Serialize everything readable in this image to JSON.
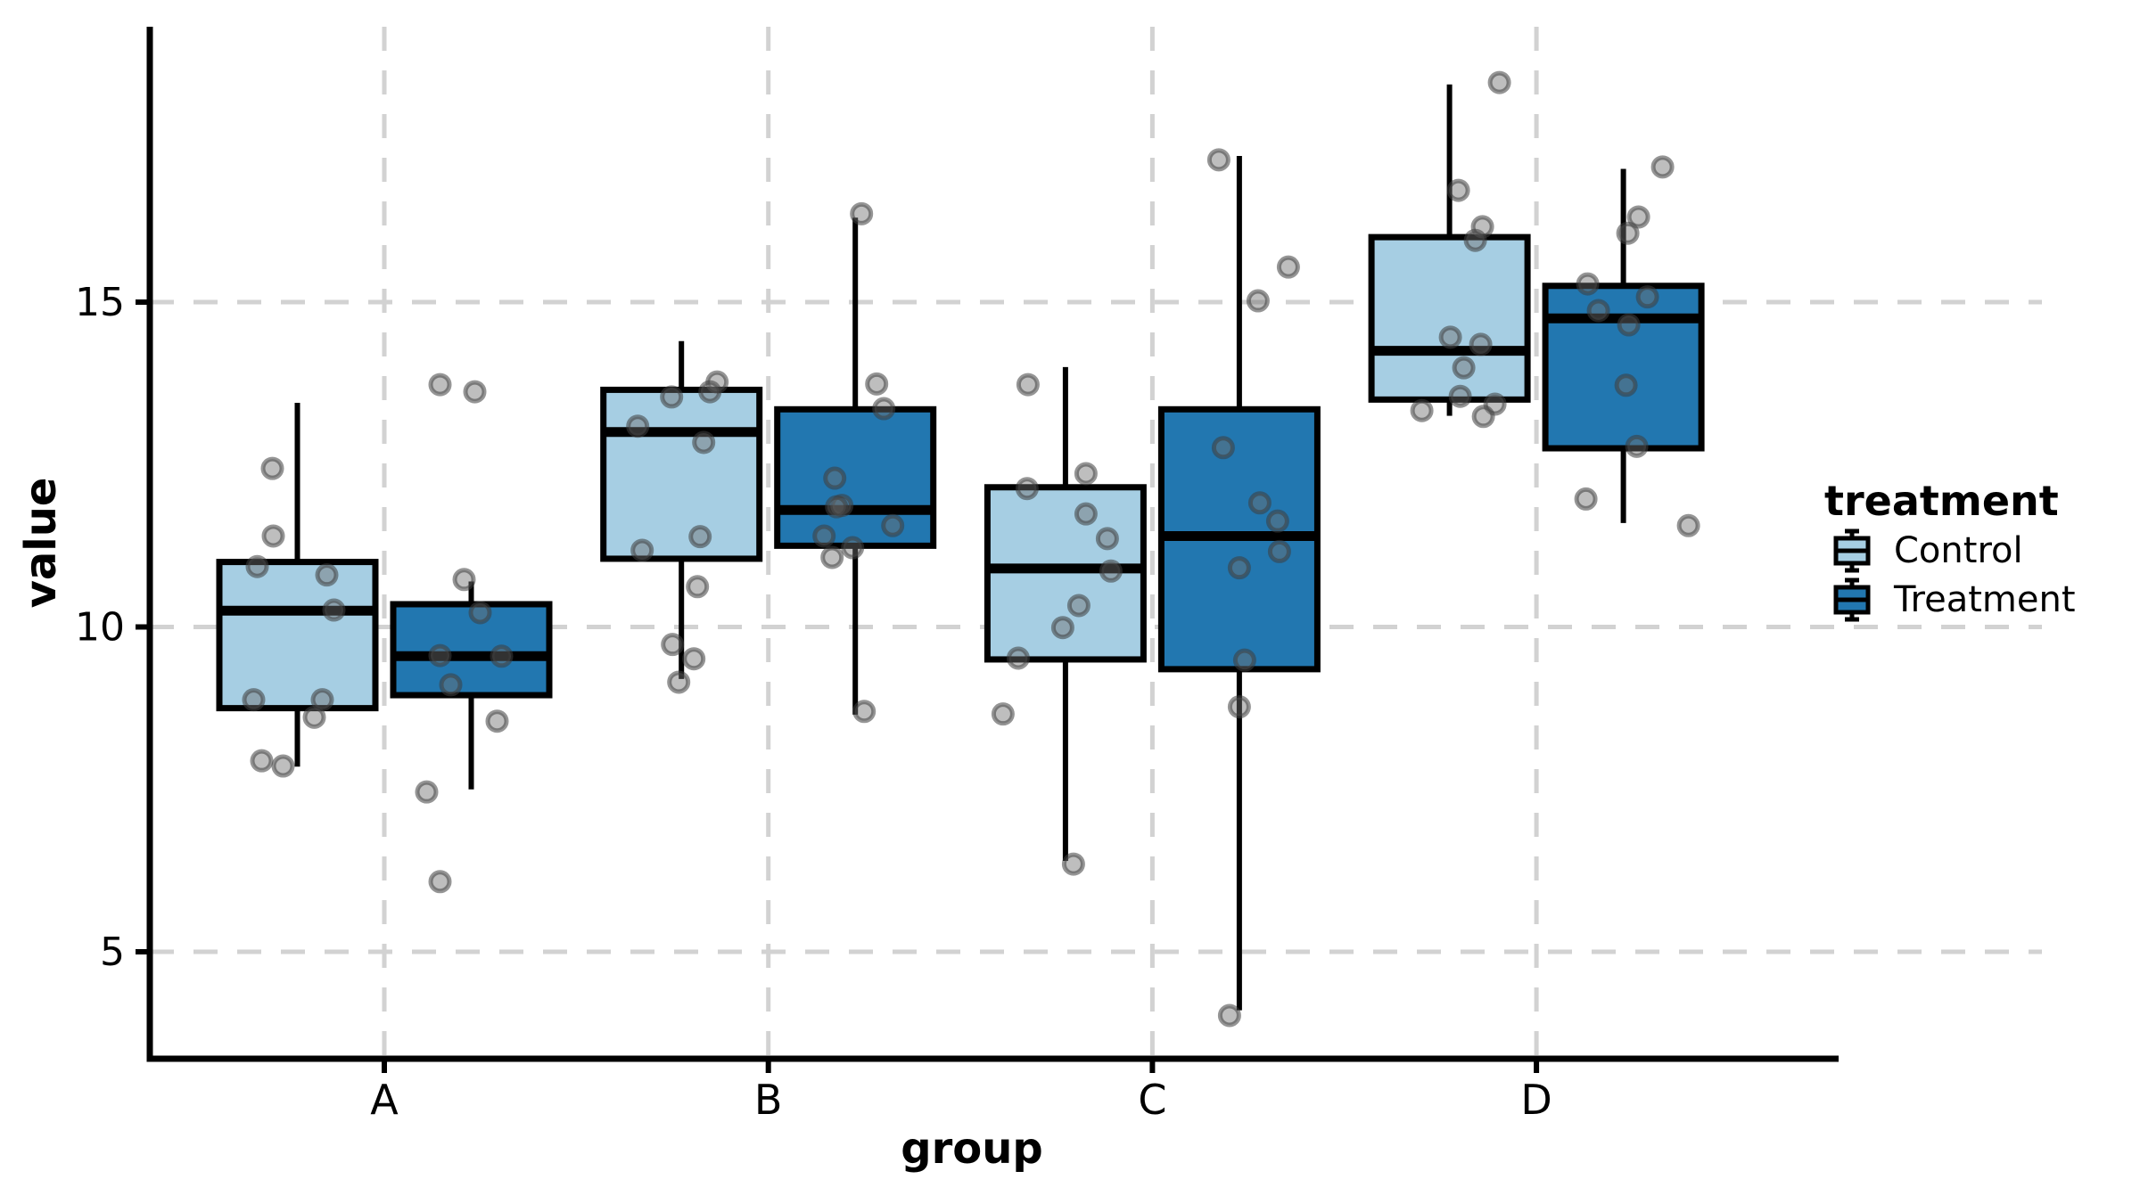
{
  "axes": {
    "x": {
      "label": "group",
      "categories": [
        "A",
        "B",
        "C",
        "D"
      ]
    },
    "y": {
      "label": "value",
      "ticks": [
        5,
        10,
        15
      ]
    }
  },
  "legend": {
    "title": "treatment",
    "entries": [
      {
        "label": "Control",
        "key": "control"
      },
      {
        "label": "Treatment",
        "key": "treatment"
      }
    ]
  },
  "colors": {
    "control_fill": "#A6CEE3",
    "treatment_fill": "#2277B0",
    "ink": "#000000",
    "gridline": "#D2D2D2",
    "point_fill": "#6E6E6E",
    "point_stroke": "#3E3E3E"
  },
  "chart_data": {
    "type": "boxplot",
    "orientation": "vertical",
    "title": "",
    "xlabel": "group",
    "ylabel": "value",
    "x_categories": [
      "A",
      "B",
      "C",
      "D"
    ],
    "y_ticks": [
      5,
      10,
      15
    ],
    "y_domain": [
      3.2,
      19.3
    ],
    "grid": "dashed-major-both",
    "legend_position": "right",
    "jitter_points_shown": true,
    "series": [
      {
        "name": "Control",
        "color": "#A6CEE3",
        "boxes": [
          {
            "group": "A",
            "whisker_low": 7.85,
            "q1": 8.75,
            "median": 10.25,
            "q3": 11.0,
            "whisker_high": 13.45,
            "points": [
              [
                -28,
                12.44
              ],
              [
                -27,
                11.4
              ],
              [
                -45,
                10.93
              ],
              [
                33,
                10.8
              ],
              [
                41,
                10.26
              ],
              [
                -49,
                8.88
              ],
              [
                28,
                8.88
              ],
              [
                19,
                8.61
              ],
              [
                -40,
                7.94
              ],
              [
                -16,
                7.86
              ]
            ]
          },
          {
            "group": "B",
            "whisker_low": 9.2,
            "q1": 11.05,
            "median": 13.0,
            "q3": 13.65,
            "whisker_high": 14.4,
            "points": [
              [
                40,
                13.77
              ],
              [
                32,
                13.62
              ],
              [
                -11,
                13.54
              ],
              [
                -49,
                13.09
              ],
              [
                25,
                12.84
              ],
              [
                21,
                11.39
              ],
              [
                -44,
                11.18
              ],
              [
                18,
                10.62
              ],
              [
                -10,
                9.73
              ],
              [
                14,
                9.51
              ],
              [
                -3,
                9.15
              ]
            ]
          },
          {
            "group": "C",
            "whisker_low": 6.4,
            "q1": 9.5,
            "median": 10.9,
            "q3": 12.15,
            "whisker_high": 14.0,
            "points": [
              [
                -42,
                13.73
              ],
              [
                23,
                12.36
              ],
              [
                -43,
                12.13
              ],
              [
                23,
                11.74
              ],
              [
                47,
                11.36
              ],
              [
                51,
                10.86
              ],
              [
                15,
                10.33
              ],
              [
                -3,
                9.99
              ],
              [
                -53,
                9.52
              ],
              [
                -70,
                8.66
              ],
              [
                9,
                6.35
              ]
            ]
          },
          {
            "group": "D",
            "whisker_low": 13.25,
            "q1": 13.5,
            "median": 14.25,
            "q3": 16.0,
            "whisker_high": 18.35,
            "points": [
              [
                56,
                18.38
              ],
              [
                10,
                16.72
              ],
              [
                37,
                16.16
              ],
              [
                29,
                15.95
              ],
              [
                1,
                14.46
              ],
              [
                35,
                14.35
              ],
              [
                16,
                13.99
              ],
              [
                12,
                13.55
              ],
              [
                51,
                13.43
              ],
              [
                -31,
                13.33
              ],
              [
                38,
                13.24
              ]
            ]
          }
        ]
      },
      {
        "name": "Treatment",
        "color": "#2277B0",
        "boxes": [
          {
            "group": "A",
            "whisker_low": 7.5,
            "q1": 8.95,
            "median": 9.55,
            "q3": 10.35,
            "whisker_high": 10.7,
            "points": [
              [
                -35,
                13.73
              ],
              [
                4,
                13.62
              ],
              [
                -8,
                10.73
              ],
              [
                10,
                10.22
              ],
              [
                -35,
                9.56
              ],
              [
                34,
                9.55
              ],
              [
                -23,
                9.11
              ],
              [
                29,
                8.55
              ],
              [
                -50,
                7.46
              ],
              [
                -35,
                6.08
              ]
            ]
          },
          {
            "group": "B",
            "whisker_low": 8.65,
            "q1": 11.25,
            "median": 11.8,
            "q3": 13.35,
            "whisker_high": 16.3,
            "points": [
              [
                7,
                16.36
              ],
              [
                24,
                13.74
              ],
              [
                32,
                13.36
              ],
              [
                -23,
                12.29
              ],
              [
                -15,
                11.87
              ],
              [
                -21,
                11.85
              ],
              [
                42,
                11.56
              ],
              [
                -35,
                11.4
              ],
              [
                -3,
                11.22
              ],
              [
                -26,
                11.07
              ],
              [
                10,
                8.7
              ]
            ]
          },
          {
            "group": "C",
            "whisker_low": 4.1,
            "q1": 9.35,
            "median": 11.4,
            "q3": 13.35,
            "whisker_high": 17.25,
            "points": [
              [
                -23,
                17.19
              ],
              [
                55,
                15.54
              ],
              [
                21,
                15.02
              ],
              [
                -18,
                12.76
              ],
              [
                23,
                11.91
              ],
              [
                43,
                11.63
              ],
              [
                45,
                11.16
              ],
              [
                0,
                10.91
              ],
              [
                6,
                9.49
              ],
              [
                0,
                8.77
              ],
              [
                -11,
                4.02
              ]
            ]
          },
          {
            "group": "D",
            "whisker_low": 11.6,
            "q1": 12.75,
            "median": 14.75,
            "q3": 15.25,
            "whisker_high": 17.05,
            "points": [
              [
                44,
                17.08
              ],
              [
                17,
                16.31
              ],
              [
                5,
                16.06
              ],
              [
                -40,
                15.28
              ],
              [
                27,
                15.08
              ],
              [
                -28,
                14.87
              ],
              [
                6,
                14.65
              ],
              [
                3,
                13.72
              ],
              [
                15,
                12.78
              ],
              [
                -42,
                11.97
              ],
              [
                73,
                11.56
              ]
            ]
          }
        ]
      }
    ]
  }
}
